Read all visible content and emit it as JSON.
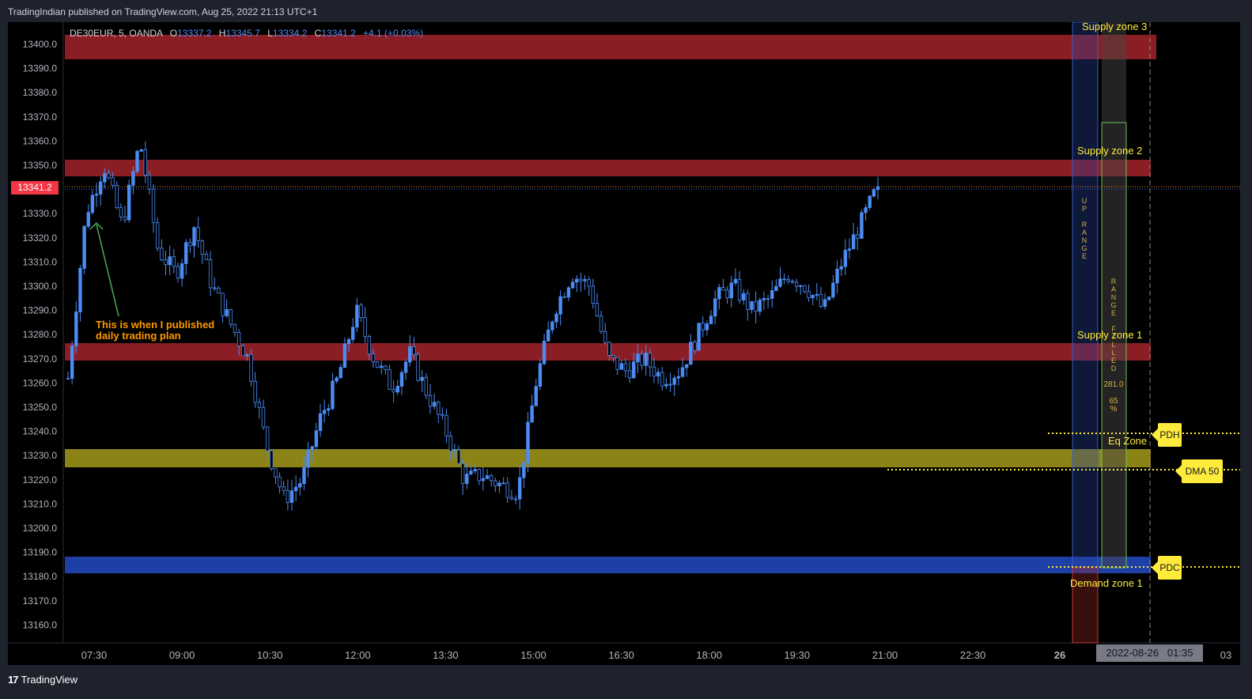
{
  "header": {
    "published_text": "TradingIndian published on TradingView.com, Aug 25, 2022 21:13 UTC+1"
  },
  "legend": {
    "symbol": "DE30EUR, 5, OANDA",
    "o_label": "O",
    "o_value": "13337.2",
    "h_label": "H",
    "h_value": "13345.7",
    "l_label": "L",
    "l_value": "13334.2",
    "c_label": "C",
    "c_value": "13341.2",
    "change": "+4.1 (+0.03%)"
  },
  "price_axis": {
    "ticks": [
      "13400.0",
      "13390.0",
      "13380.0",
      "13370.0",
      "13360.0",
      "13350.0",
      "13340.0",
      "13330.0",
      "13320.0",
      "13310.0",
      "13300.0",
      "13290.0",
      "13280.0",
      "13270.0",
      "13260.0",
      "13250.0",
      "13240.0",
      "13230.0",
      "13220.0",
      "13210.0",
      "13200.0",
      "13190.0",
      "13180.0",
      "13170.0",
      "13160.0"
    ],
    "current_price": "13341.2"
  },
  "time_axis": {
    "ticks": [
      "07:30",
      "09:00",
      "10:30",
      "12:00",
      "13:30",
      "15:00",
      "16:30",
      "18:00",
      "19:30",
      "21:00",
      "22:30",
      "26",
      "03"
    ],
    "crosshair_date": "2022-08-26",
    "crosshair_time": "01:35"
  },
  "zones": {
    "supply_zone_3": "Supply zone 3",
    "supply_zone_2": "Supply zone 2",
    "supply_zone_1": "Supply zone 1",
    "eq_zone": "Eq Zone",
    "demand_zone_1": "Demand zone 1"
  },
  "annotation": {
    "line1": "This is when I published",
    "line2": "daily trading plan"
  },
  "range_box": {
    "up_range": [
      "U",
      "P",
      "",
      "R",
      "A",
      "N",
      "G",
      "E"
    ],
    "range_filled": [
      "R",
      "A",
      "N",
      "G",
      "E",
      "",
      "F",
      "I",
      "L",
      "L",
      "E",
      "D"
    ],
    "range_value": "281.0",
    "percent_value": "65",
    "percent_sign": "%"
  },
  "flags": {
    "pdh": "PDH",
    "dma": "DMA 50",
    "pdc": "PDC"
  },
  "footer": {
    "brand": "TradingView",
    "logo_mark": "17"
  },
  "colors": {
    "supply": "#8b1e24",
    "eq": "#8c8317",
    "demand": "#1e3fa6",
    "candle_up": "#4c8cf5",
    "candle_down": "#4c8cf5",
    "zone_text": "#ffeb3b",
    "annotation": "#ff9800",
    "arrow": "#4caf50"
  },
  "chart_data": {
    "type": "candlestick",
    "symbol": "DE30EUR",
    "timeframe": "5",
    "y_range": [
      13155,
      13410
    ],
    "x": [
      "07:30",
      "09:00",
      "10:30",
      "12:00",
      "13:30",
      "15:00",
      "16:30",
      "18:00",
      "19:30",
      "21:00"
    ],
    "close_path": [
      13262,
      13330,
      13350,
      13325,
      13360,
      13315,
      13305,
      13325,
      13300,
      13285,
      13270,
      13235,
      13212,
      13220,
      13245,
      13262,
      13290,
      13270,
      13258,
      13272,
      13255,
      13240,
      13220,
      13222,
      13218,
      13215,
      13260,
      13290,
      13305,
      13300,
      13270,
      13265,
      13270,
      13262,
      13265,
      13280,
      13295,
      13300,
      13290,
      13295,
      13305,
      13300,
      13290,
      13310,
      13325,
      13341.2
    ],
    "last_close": 13341.2,
    "levels": [
      {
        "name": "Supply zone 3",
        "from": 13394,
        "to": 13404
      },
      {
        "name": "Supply zone 2",
        "from": 13346,
        "to": 13353
      },
      {
        "name": "Supply zone 1",
        "from": 13269,
        "to": 13276
      },
      {
        "name": "Eq Zone",
        "from": 13225,
        "to": 13232
      },
      {
        "name": "Demand zone 1",
        "from": 13180,
        "to": 13187
      }
    ],
    "PDH": 13240,
    "DMA 50": 13224,
    "PDC": 13183
  }
}
